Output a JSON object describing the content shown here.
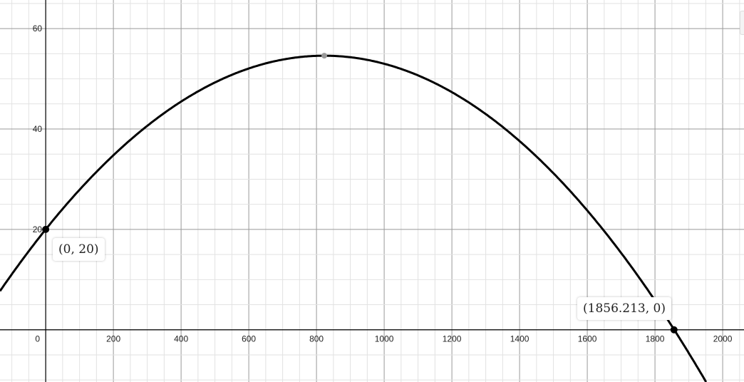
{
  "chart_data": {
    "type": "line",
    "xlim": [
      -135,
      2063
    ],
    "ylim": [
      -10.4,
      65.7
    ],
    "grid": true,
    "x_major_step": 200,
    "x_minor_step": 50,
    "y_major_step": 20,
    "y_minor_step": 5,
    "x_tick_labels": [
      "0",
      "200",
      "400",
      "600",
      "800",
      "1000",
      "1200",
      "1400",
      "1600",
      "1800",
      "2000"
    ],
    "y_tick_labels": [
      "20",
      "40",
      "60"
    ],
    "curve": {
      "type": "parabola",
      "vertex": [
        823,
        54.6
      ],
      "y_intercept": 20,
      "root": 1856.213,
      "color": "#000000"
    },
    "points": [
      {
        "x": 0,
        "y": 20,
        "label": "(0, 20)",
        "color": "#000000"
      },
      {
        "x": 823,
        "y": 54.6,
        "label": "",
        "color": "#999999"
      },
      {
        "x": 1856.213,
        "y": 0,
        "label": "(1856.213, 0)",
        "color": "#000000"
      }
    ]
  }
}
